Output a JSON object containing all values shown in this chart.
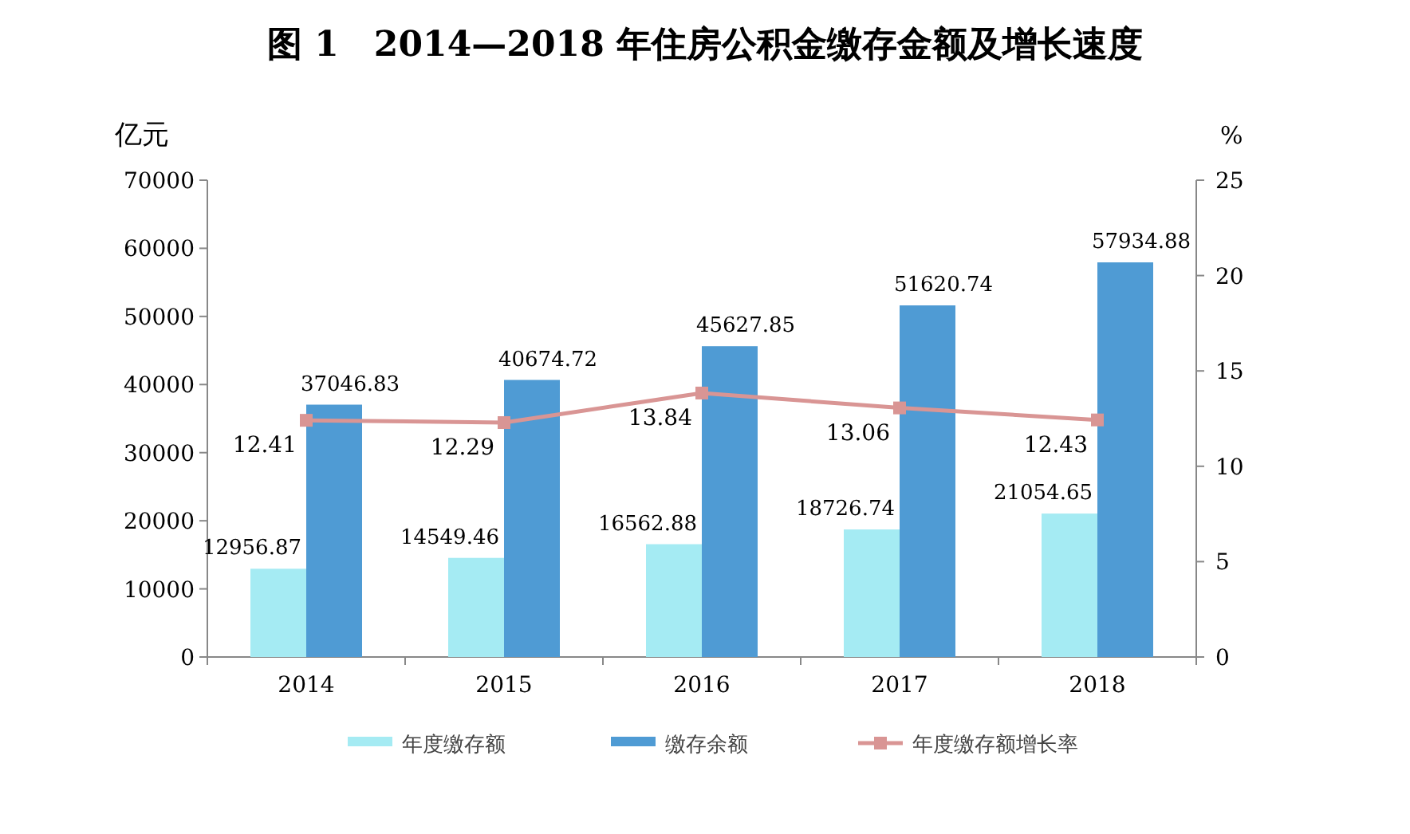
{
  "chart_data": {
    "type": "bar",
    "title": "图 1　2014—2018 年住房公积金缴存金额及增长速度",
    "ylabel": "亿元",
    "y2label": "%",
    "categories": [
      "2014",
      "2015",
      "2016",
      "2017",
      "2018"
    ],
    "series": [
      {
        "name": "年度缴存额",
        "color": "#a5ebf3",
        "values": [
          12956.87,
          14549.46,
          16562.88,
          18726.74,
          21054.65
        ]
      },
      {
        "name": "缴存余额",
        "color": "#4f9bd4",
        "values": [
          37046.83,
          40674.72,
          45627.85,
          51620.74,
          57934.88
        ]
      },
      {
        "name": "年度缴存额增长率",
        "type": "line",
        "axis": "y2",
        "color": "#d99594",
        "marker": "square",
        "values": [
          12.41,
          12.29,
          13.84,
          13.06,
          12.43
        ]
      }
    ],
    "ylim": [
      0,
      70000
    ],
    "yticks": [
      0,
      10000,
      20000,
      30000,
      40000,
      50000,
      60000,
      70000
    ],
    "y2lim": [
      0,
      25
    ],
    "y2ticks": [
      0,
      5,
      10,
      15,
      20,
      25
    ],
    "data_labels": true,
    "legend": "bottom",
    "grid": false
  }
}
